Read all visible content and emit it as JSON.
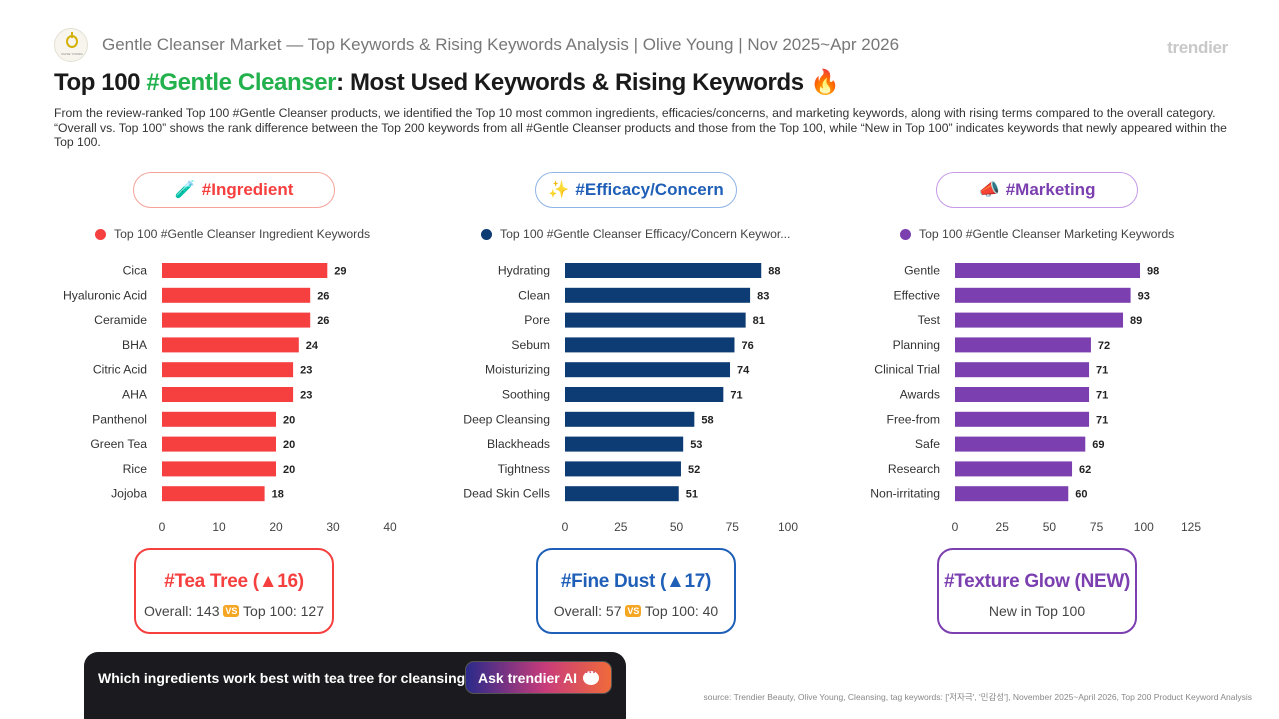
{
  "header": {
    "logo_text": "OLIVE YOUNG",
    "title": "Gentle Cleanser Market — Top Keywords & Rising Keywords Analysis | Olive Young | Nov 2025~Apr 2026",
    "brand": "trendier"
  },
  "main_title": {
    "prefix": "Top 100 ",
    "highlight": "#Gentle Cleanser",
    "suffix": ": Most Used Keywords & Rising Keywords",
    "emoji": "🔥"
  },
  "description": "From the review-ranked Top 100 #Gentle Cleanser products, we identified the Top 10 most common ingredients, efficacies/concerns, and marketing keywords, along with rising terms compared to the overall category. “Overall vs. Top 100” shows the rank difference between the Top 200 keywords from all #Gentle Cleanser products and those from the Top 100, while “New in Top 100” indicates keywords that newly appeared within the Top 100.",
  "colors": {
    "ingredient": "#f5403f",
    "efficacy": "#0d3b73",
    "marketing": "#7b3fb0",
    "ingredient_border": "#f5a39a",
    "efficacy_border": "#8fb4e6",
    "marketing_border": "#c69ae6"
  },
  "categories": [
    {
      "emoji": "🧪",
      "label": "#Ingredient"
    },
    {
      "emoji": "✨",
      "label": "#Efficacy/Concern"
    },
    {
      "emoji": "📣",
      "label": "#Marketing"
    }
  ],
  "chart_data": [
    {
      "type": "bar",
      "orientation": "horizontal",
      "legend": "Top 100 #Gentle Cleanser Ingredient Keywords",
      "categories": [
        "Cica",
        "Hyaluronic Acid",
        "Ceramide",
        "BHA",
        "Citric Acid",
        "AHA",
        "Panthenol",
        "Green Tea",
        "Rice",
        "Jojoba"
      ],
      "values": [
        29,
        26,
        26,
        24,
        23,
        23,
        20,
        20,
        20,
        18
      ],
      "xlim": [
        0,
        40
      ],
      "xticks": [
        0,
        10,
        20,
        30,
        40
      ],
      "grid": false
    },
    {
      "type": "bar",
      "orientation": "horizontal",
      "legend": "Top 100 #Gentle Cleanser Efficacy/Concern Keywor...",
      "categories": [
        "Hydrating",
        "Clean",
        "Pore",
        "Sebum",
        "Moisturizing",
        "Soothing",
        "Deep Cleansing",
        "Blackheads",
        "Tightness",
        "Dead Skin Cells"
      ],
      "values": [
        88,
        83,
        81,
        76,
        74,
        71,
        58,
        53,
        52,
        51
      ],
      "xlim": [
        0,
        100
      ],
      "xticks": [
        0,
        25,
        50,
        75,
        100
      ],
      "grid": false
    },
    {
      "type": "bar",
      "orientation": "horizontal",
      "legend": "Top 100 #Gentle Cleanser Marketing Keywords",
      "categories": [
        "Gentle",
        "Effective",
        "Test",
        "Planning",
        "Clinical Trial",
        "Awards",
        "Free-from",
        "Safe",
        "Research",
        "Non-irritating"
      ],
      "values": [
        98,
        93,
        89,
        72,
        71,
        71,
        71,
        69,
        62,
        60
      ],
      "xlim": [
        0,
        125
      ],
      "xticks": [
        0,
        25,
        50,
        75,
        100,
        125
      ],
      "grid": false
    }
  ],
  "cards": [
    {
      "title": "#Tea Tree (▲16)",
      "sub_left": "Overall: 143",
      "vs": "VS",
      "sub_right": "Top 100: 127"
    },
    {
      "title": "#Fine Dust (▲17)",
      "sub_left": "Overall: 57",
      "vs": "VS",
      "sub_right": "Top 100: 40"
    },
    {
      "title": "#Texture Glow (NEW)",
      "sub_left": "New in Top 100",
      "vs": "",
      "sub_right": ""
    }
  ],
  "ai": {
    "question": "Which ingredients work best with tea tree for cleansing?",
    "button": "Ask trendier AI"
  },
  "source": "source: Trendier Beauty, Olive Young, Cleansing, tag keywords: ['저자극', '민감성'], November 2025~April 2026, Top 200 Product Keyword Analysis"
}
